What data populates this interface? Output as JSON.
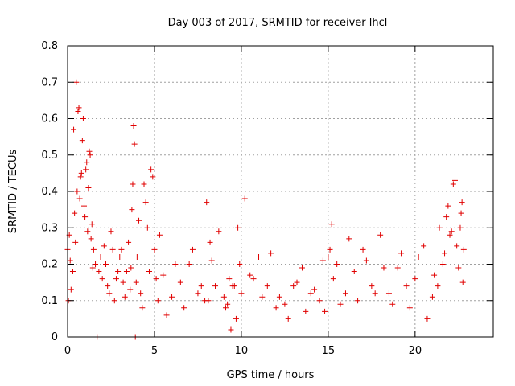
{
  "chart_data": {
    "type": "scatter",
    "title": "Day 003 of 2017, SRMTID for receiver lhcl",
    "xlabel": "GPS time / hours",
    "ylabel": "SRMTID / TECUs",
    "xlim": [
      0,
      24.5
    ],
    "ylim": [
      0,
      0.8
    ],
    "x_ticks": [
      0,
      5,
      10,
      15,
      20
    ],
    "x_tick_labels": [
      "0",
      "5",
      "10",
      "15",
      "20"
    ],
    "y_ticks": [
      0,
      0.1,
      0.2,
      0.3,
      0.4,
      0.5,
      0.6,
      0.7,
      0.8
    ],
    "y_tick_labels": [
      "0",
      "0.1",
      "0.2",
      "0.3",
      "0.4",
      "0.5",
      "0.6",
      "0.7",
      "0.8"
    ],
    "grid": true,
    "marker": "plus",
    "series": [
      {
        "name": "SRMTID",
        "color": "#e00000",
        "x": [
          0.0,
          0.1,
          0.2,
          0.3,
          0.4,
          0.5,
          0.6,
          0.7,
          0.8,
          0.9,
          1.0,
          1.1,
          1.2,
          1.3,
          1.4,
          1.5,
          1.6,
          1.7,
          1.8,
          1.9,
          2.0,
          2.2,
          2.4,
          2.6,
          2.8,
          3.0,
          3.2,
          3.4,
          3.6,
          3.7,
          3.8,
          3.9,
          4.0,
          4.2,
          4.4,
          4.6,
          4.8,
          5.0,
          5.2,
          5.5,
          6.0,
          6.5,
          7.0,
          7.5,
          7.9,
          8.0,
          8.2,
          8.5,
          9.0,
          9.2,
          9.4,
          9.6,
          9.8,
          10.0,
          10.5,
          11.0,
          11.5,
          12.0,
          12.5,
          13.0,
          13.5,
          14.0,
          14.5,
          14.8,
          15.0,
          15.2,
          15.5,
          16.0,
          16.5,
          17.0,
          17.5,
          18.0,
          18.5,
          19.0,
          19.5,
          20.0,
          20.5,
          21.0,
          21.3,
          21.6,
          21.8,
          22.0,
          22.2,
          22.4,
          22.6,
          22.7,
          22.8,
          0.05,
          0.15,
          0.35,
          0.45,
          0.55,
          0.65,
          0.75,
          0.85,
          0.95,
          1.05,
          1.15,
          1.25,
          1.35,
          1.45,
          2.1,
          2.3,
          2.5,
          2.7,
          2.9,
          3.1,
          3.3,
          3.5,
          3.65,
          3.75,
          3.85,
          3.95,
          4.1,
          4.3,
          4.5,
          4.7,
          4.9,
          5.1,
          5.3,
          5.7,
          6.2,
          6.7,
          7.2,
          7.7,
          8.1,
          8.3,
          8.7,
          9.1,
          9.3,
          9.5,
          9.7,
          9.9,
          10.2,
          10.7,
          11.2,
          11.7,
          12.2,
          12.7,
          13.2,
          13.7,
          14.2,
          14.7,
          15.1,
          15.3,
          15.7,
          16.2,
          16.7,
          17.2,
          17.7,
          18.2,
          18.7,
          19.2,
          19.7,
          20.2,
          20.7,
          21.1,
          21.4,
          21.7,
          21.9,
          22.1,
          22.3,
          22.5,
          22.65,
          22.75
        ],
        "y": [
          0.24,
          0.28,
          0.13,
          0.18,
          0.34,
          0.7,
          0.62,
          0.38,
          0.45,
          0.6,
          0.33,
          0.48,
          0.41,
          0.5,
          0.31,
          0.24,
          0.2,
          0.0,
          0.18,
          0.22,
          0.16,
          0.2,
          0.12,
          0.24,
          0.16,
          0.22,
          0.15,
          0.18,
          0.13,
          0.35,
          0.58,
          0.0,
          0.22,
          0.12,
          0.42,
          0.3,
          0.46,
          0.24,
          0.1,
          0.17,
          0.11,
          0.15,
          0.2,
          0.12,
          0.1,
          0.37,
          0.26,
          0.14,
          0.11,
          0.09,
          0.02,
          0.14,
          0.3,
          0.12,
          0.17,
          0.22,
          0.14,
          0.08,
          0.09,
          0.14,
          0.19,
          0.12,
          0.1,
          0.07,
          0.22,
          0.31,
          0.2,
          0.12,
          0.18,
          0.24,
          0.14,
          0.28,
          0.12,
          0.19,
          0.14,
          0.16,
          0.25,
          0.11,
          0.14,
          0.2,
          0.33,
          0.28,
          0.42,
          0.25,
          0.3,
          0.37,
          0.24,
          0.1,
          0.21,
          0.57,
          0.26,
          0.4,
          0.63,
          0.44,
          0.54,
          0.36,
          0.46,
          0.29,
          0.51,
          0.27,
          0.19,
          0.25,
          0.14,
          0.29,
          0.1,
          0.18,
          0.24,
          0.11,
          0.26,
          0.19,
          0.42,
          0.53,
          0.15,
          0.32,
          0.08,
          0.37,
          0.18,
          0.44,
          0.16,
          0.28,
          0.06,
          0.2,
          0.08,
          0.24,
          0.14,
          0.1,
          0.21,
          0.29,
          0.08,
          0.16,
          0.14,
          0.05,
          0.2,
          0.38,
          0.16,
          0.11,
          0.23,
          0.11,
          0.05,
          0.15,
          0.07,
          0.13,
          0.21,
          0.24,
          0.16,
          0.09,
          0.27,
          0.1,
          0.21,
          0.12,
          0.19,
          0.09,
          0.23,
          0.08,
          0.22,
          0.05,
          0.17,
          0.3,
          0.23,
          0.36,
          0.29,
          0.43,
          0.19,
          0.34,
          0.15
        ]
      }
    ]
  }
}
